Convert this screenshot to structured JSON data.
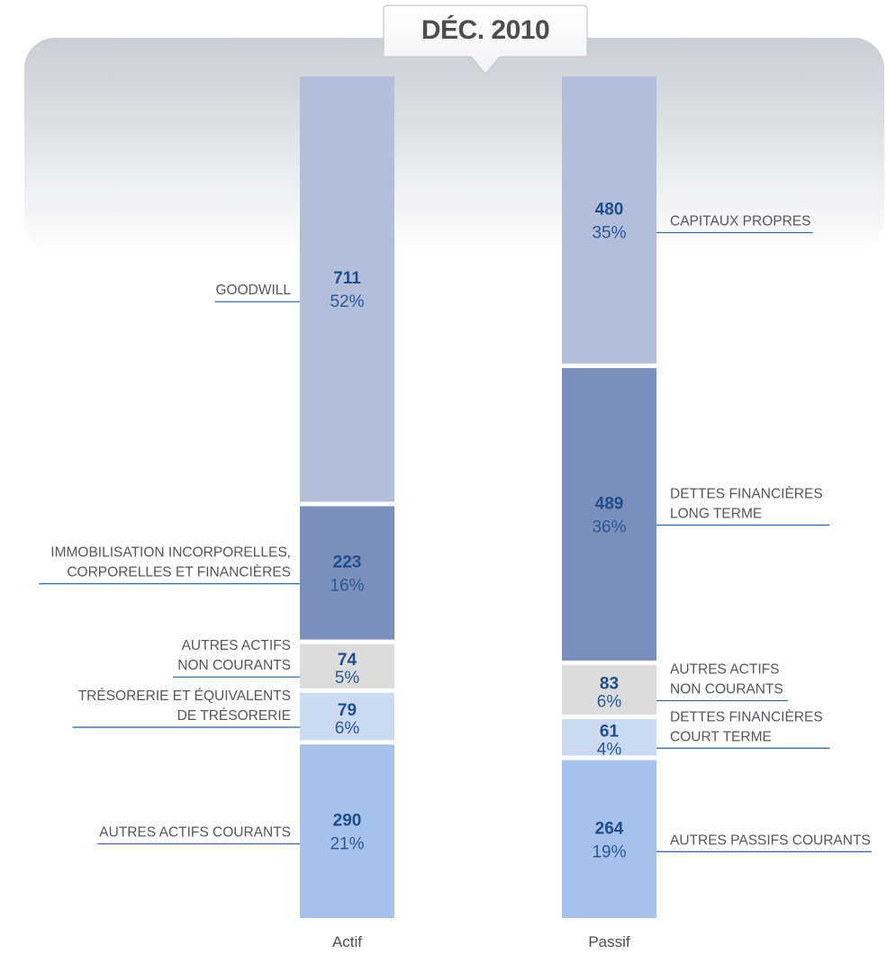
{
  "title": "DÉC. 2010",
  "chart_data": {
    "type": "bar",
    "stacked": true,
    "categories": [
      "Actif",
      "Passif"
    ],
    "columns": [
      {
        "name": "Actif",
        "segments": [
          {
            "label": "GOODWILL",
            "value": 711,
            "pct": "52%",
            "color": "#b3bedb"
          },
          {
            "label": "IMMOBILISATION INCORPORELLES,\nCORPORELLES ET FINANCIÈRES",
            "value": 223,
            "pct": "16%",
            "color": "#7a8fbb"
          },
          {
            "label": "AUTRES ACTIFS\nNON COURANTS",
            "value": 74,
            "pct": "5%",
            "color": "#dcdcdd"
          },
          {
            "label": "TRÉSORERIE ET ÉQUIVALENTS\nDE TRÉSORERIE",
            "value": 79,
            "pct": "6%",
            "color": "#cbdaf1"
          },
          {
            "label": "AUTRES ACTIFS COURANTS",
            "value": 290,
            "pct": "21%",
            "color": "#a6c1ea"
          }
        ]
      },
      {
        "name": "Passif",
        "segments": [
          {
            "label": "CAPITAUX PROPRES",
            "value": 480,
            "pct": "35%",
            "color": "#b3bedb"
          },
          {
            "label": "DETTES FINANCIÈRES\nLONG TERME",
            "value": 489,
            "pct": "36%",
            "color": "#7a8fbb"
          },
          {
            "label": "AUTRES ACTIFS\nNON COURANTS",
            "value": 83,
            "pct": "6%",
            "color": "#dcdcdd"
          },
          {
            "label": "DETTES FINANCIÈRES\nCOURT TERME",
            "value": 61,
            "pct": "4%",
            "color": "#cbdaf1"
          },
          {
            "label": "AUTRES PASSIFS COURANTS",
            "value": 264,
            "pct": "19%",
            "color": "#a6c1ea"
          }
        ]
      }
    ],
    "colors": {
      "value_text": "#1f4e8c",
      "pct_text": "#2a5a98",
      "callout_line": "#3a6ea5",
      "callout_text": "#55575b"
    }
  }
}
